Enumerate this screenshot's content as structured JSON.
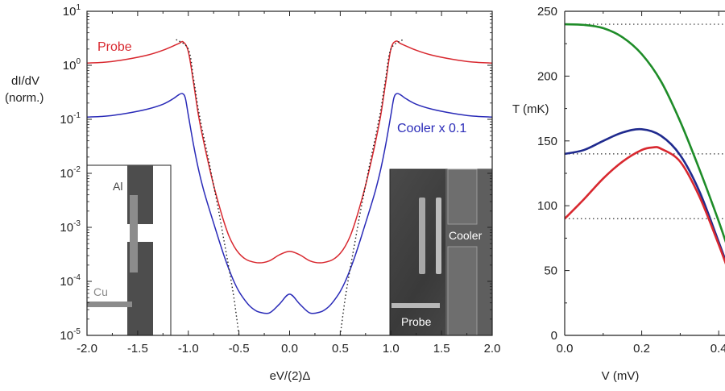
{
  "chart_data": [
    {
      "type": "line",
      "xlabel": "eV/(2)Δ",
      "ylabel_line1": "dI/dV",
      "ylabel_line2": "(norm.)",
      "yscale": "log",
      "xlim": [
        -2.0,
        2.0
      ],
      "ylim": [
        1e-05,
        10
      ],
      "x_ticks": [
        "-2.0",
        "-1.5",
        "-1.0",
        "-0.5",
        "0.0",
        "0.5",
        "1.0",
        "1.5",
        "2.0"
      ],
      "y_ticks": [
        {
          "base": "10",
          "exp": "1"
        },
        {
          "base": "10",
          "exp": "0"
        },
        {
          "base": "10",
          "exp": "-1"
        },
        {
          "base": "10",
          "exp": "-2"
        },
        {
          "base": "10",
          "exp": "-3"
        },
        {
          "base": "10",
          "exp": "-4"
        },
        {
          "base": "10",
          "exp": "-5"
        }
      ],
      "series": [
        {
          "name": "Probe",
          "color": "#d8282f",
          "points": [
            [
              -2.0,
              1.1
            ],
            [
              -1.8,
              1.15
            ],
            [
              -1.6,
              1.3
            ],
            [
              -1.4,
              1.55
            ],
            [
              -1.25,
              1.9
            ],
            [
              -1.1,
              2.5
            ],
            [
              -1.05,
              2.7
            ],
            [
              -1.0,
              1.8
            ],
            [
              -0.95,
              0.5
            ],
            [
              -0.9,
              0.12
            ],
            [
              -0.85,
              0.04
            ],
            [
              -0.8,
              0.015
            ],
            [
              -0.75,
              0.006
            ],
            [
              -0.7,
              0.0027
            ],
            [
              -0.65,
              0.0013
            ],
            [
              -0.6,
              0.0007
            ],
            [
              -0.55,
              0.00045
            ],
            [
              -0.5,
              0.00033
            ],
            [
              -0.45,
              0.00027
            ],
            [
              -0.4,
              0.00024
            ],
            [
              -0.3,
              0.00022
            ],
            [
              -0.2,
              0.00024
            ],
            [
              -0.1,
              0.00031
            ],
            [
              0.0,
              0.00036
            ],
            [
              0.1,
              0.00031
            ],
            [
              0.2,
              0.00024
            ],
            [
              0.3,
              0.00022
            ],
            [
              0.4,
              0.00024
            ],
            [
              0.45,
              0.00027
            ],
            [
              0.5,
              0.00033
            ],
            [
              0.55,
              0.00045
            ],
            [
              0.6,
              0.0007
            ],
            [
              0.65,
              0.0013
            ],
            [
              0.7,
              0.0027
            ],
            [
              0.75,
              0.006
            ],
            [
              0.8,
              0.015
            ],
            [
              0.85,
              0.04
            ],
            [
              0.9,
              0.12
            ],
            [
              0.95,
              0.5
            ],
            [
              1.0,
              2.0
            ],
            [
              1.05,
              2.8
            ],
            [
              1.1,
              2.5
            ],
            [
              1.25,
              1.9
            ],
            [
              1.4,
              1.55
            ],
            [
              1.6,
              1.3
            ],
            [
              1.8,
              1.15
            ],
            [
              2.0,
              1.1
            ]
          ]
        },
        {
          "name": "Cooler x 0.1",
          "color": "#2a2bb8",
          "points": [
            [
              -2.0,
              0.11
            ],
            [
              -1.8,
              0.115
            ],
            [
              -1.6,
              0.13
            ],
            [
              -1.4,
              0.155
            ],
            [
              -1.25,
              0.19
            ],
            [
              -1.15,
              0.24
            ],
            [
              -1.1,
              0.28
            ],
            [
              -1.06,
              0.3
            ],
            [
              -1.03,
              0.25
            ],
            [
              -1.0,
              0.12
            ],
            [
              -0.95,
              0.035
            ],
            [
              -0.9,
              0.012
            ],
            [
              -0.85,
              0.005
            ],
            [
              -0.8,
              0.0024
            ],
            [
              -0.75,
              0.0012
            ],
            [
              -0.7,
              0.0006
            ],
            [
              -0.65,
              0.00031
            ],
            [
              -0.6,
              0.00017
            ],
            [
              -0.55,
              0.0001
            ],
            [
              -0.5,
              6.5e-05
            ],
            [
              -0.45,
              4.7e-05
            ],
            [
              -0.4,
              3.6e-05
            ],
            [
              -0.35,
              3e-05
            ],
            [
              -0.3,
              2.7e-05
            ],
            [
              -0.2,
              2.6e-05
            ],
            [
              -0.1,
              3.8e-05
            ],
            [
              0.0,
              5.8e-05
            ],
            [
              0.1,
              3.8e-05
            ],
            [
              0.2,
              2.6e-05
            ],
            [
              0.3,
              2.7e-05
            ],
            [
              0.35,
              3e-05
            ],
            [
              0.4,
              3.6e-05
            ],
            [
              0.45,
              4.7e-05
            ],
            [
              0.5,
              6.5e-05
            ],
            [
              0.55,
              0.0001
            ],
            [
              0.6,
              0.00017
            ],
            [
              0.65,
              0.00031
            ],
            [
              0.7,
              0.0006
            ],
            [
              0.75,
              0.0012
            ],
            [
              0.8,
              0.0024
            ],
            [
              0.85,
              0.005
            ],
            [
              0.9,
              0.012
            ],
            [
              0.95,
              0.035
            ],
            [
              1.0,
              0.12
            ],
            [
              1.03,
              0.25
            ],
            [
              1.06,
              0.3
            ],
            [
              1.1,
              0.28
            ],
            [
              1.15,
              0.24
            ],
            [
              1.25,
              0.19
            ],
            [
              1.4,
              0.155
            ],
            [
              1.6,
              0.13
            ],
            [
              1.8,
              0.115
            ],
            [
              2.0,
              0.11
            ]
          ]
        },
        {
          "name": "",
          "style": "dotted",
          "color": "#222222",
          "points": [
            [
              -1.12,
              3.0
            ],
            [
              -1.0,
              2.0
            ],
            [
              -0.95,
              0.6
            ],
            [
              -0.9,
              0.15
            ],
            [
              -0.85,
              0.05
            ],
            [
              -0.8,
              0.018
            ],
            [
              -0.75,
              0.006
            ],
            [
              -0.7,
              0.002
            ],
            [
              -0.65,
              0.0006
            ],
            [
              -0.6,
              0.00018
            ],
            [
              -0.55,
              5e-05
            ],
            [
              -0.5,
              1e-05
            ]
          ]
        },
        {
          "name": "",
          "style": "dotted",
          "color": "#222222",
          "points": [
            [
              0.5,
              1e-05
            ],
            [
              0.55,
              5e-05
            ],
            [
              0.6,
              0.00018
            ],
            [
              0.65,
              0.0006
            ],
            [
              0.7,
              0.002
            ],
            [
              0.75,
              0.006
            ],
            [
              0.8,
              0.018
            ],
            [
              0.85,
              0.05
            ],
            [
              0.9,
              0.15
            ],
            [
              0.95,
              0.6
            ],
            [
              1.0,
              2.0
            ],
            [
              1.12,
              3.0
            ]
          ]
        }
      ],
      "annotations": {
        "probe": "Probe",
        "cooler": "Cooler x 0.1"
      },
      "inset_schematic": {
        "label_al": "Al",
        "label_cu": "Cu"
      },
      "inset_micrograph": {
        "label_cooler": "Cooler",
        "label_probe": "Probe"
      }
    },
    {
      "type": "line",
      "xlabel": "V (mV)",
      "ylabel": "T (mK)",
      "xlim": [
        0.0,
        0.45
      ],
      "ylim": [
        0,
        250
      ],
      "x_ticks": [
        "0.0",
        "0.2",
        "0.4"
      ],
      "y_ticks": [
        "0",
        "50",
        "100",
        "150",
        "200",
        "250"
      ],
      "reference_lines": [
        240,
        140,
        90
      ],
      "series": [
        {
          "name": "",
          "color": "#1e8c28",
          "points": [
            [
              0.0,
              240
            ],
            [
              0.05,
              239.5
            ],
            [
              0.1,
              237
            ],
            [
              0.15,
              230
            ],
            [
              0.2,
              217
            ],
            [
              0.25,
              196
            ],
            [
              0.3,
              165
            ],
            [
              0.35,
              128
            ],
            [
              0.4,
              88
            ],
            [
              0.43,
              62
            ],
            [
              0.445,
              52
            ]
          ]
        },
        {
          "name": "",
          "color": "#1f2a8e",
          "points": [
            [
              0.0,
              140
            ],
            [
              0.05,
              143
            ],
            [
              0.1,
              150
            ],
            [
              0.15,
              156.5
            ],
            [
              0.2,
              159
            ],
            [
              0.25,
              154
            ],
            [
              0.3,
              139
            ],
            [
              0.35,
              111
            ],
            [
              0.4,
              72
            ],
            [
              0.43,
              48
            ],
            [
              0.445,
              38
            ]
          ]
        },
        {
          "name": "",
          "color": "#d8282f",
          "points": [
            [
              0.0,
              90
            ],
            [
              0.05,
              105
            ],
            [
              0.1,
              121
            ],
            [
              0.15,
              134
            ],
            [
              0.2,
              143
            ],
            [
              0.23,
              145
            ],
            [
              0.25,
              144
            ],
            [
              0.3,
              134
            ],
            [
              0.35,
              107
            ],
            [
              0.4,
              70
            ],
            [
              0.43,
              46
            ],
            [
              0.445,
              36
            ]
          ]
        }
      ]
    }
  ]
}
